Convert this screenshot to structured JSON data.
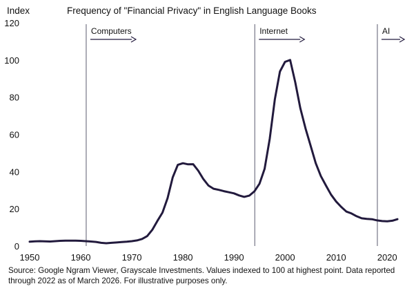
{
  "chart_data": {
    "type": "line",
    "title": "Frequency of \"Financial Privacy\" in English Language Books",
    "ylabel": "Index",
    "xlabel": "",
    "xlim": [
      1950,
      2022
    ],
    "ylim": [
      0,
      120
    ],
    "x_ticks": [
      1950,
      1960,
      1970,
      1980,
      1990,
      2000,
      2010,
      2020
    ],
    "y_ticks": [
      0,
      20,
      40,
      60,
      80,
      100,
      120
    ],
    "grid": false,
    "legend": "none",
    "series": [
      {
        "color": "#221a3d",
        "x": [
          1950,
          1951,
          1952,
          1953,
          1954,
          1955,
          1956,
          1957,
          1958,
          1959,
          1960,
          1961,
          1962,
          1963,
          1964,
          1965,
          1966,
          1967,
          1968,
          1969,
          1970,
          1971,
          1972,
          1973,
          1974,
          1975,
          1976,
          1977,
          1978,
          1979,
          1980,
          1981,
          1982,
          1983,
          1984,
          1985,
          1986,
          1987,
          1988,
          1989,
          1990,
          1991,
          1992,
          1993,
          1994,
          1995,
          1996,
          1997,
          1998,
          1999,
          2000,
          2001,
          2002,
          2003,
          2004,
          2005,
          2006,
          2007,
          2008,
          2009,
          2010,
          2011,
          2012,
          2013,
          2014,
          2015,
          2016,
          2017,
          2018,
          2019,
          2020,
          2021,
          2022
        ],
        "values": [
          2.3,
          2.5,
          2.6,
          2.5,
          2.4,
          2.6,
          2.8,
          2.9,
          2.9,
          2.9,
          2.8,
          2.6,
          2.4,
          2.2,
          1.7,
          1.5,
          1.7,
          1.9,
          2.1,
          2.3,
          2.6,
          3.0,
          3.8,
          5.3,
          8.7,
          13.5,
          18.0,
          25.8,
          36.9,
          43.6,
          44.5,
          43.9,
          44.0,
          40.5,
          36.0,
          32.5,
          30.8,
          30.2,
          29.5,
          28.9,
          28.3,
          27.2,
          26.4,
          27.1,
          29.4,
          33.5,
          41.5,
          57.6,
          78.8,
          93.8,
          99.0,
          100.0,
          88.0,
          74.0,
          63.2,
          53.9,
          44.5,
          37.6,
          32.5,
          27.6,
          23.9,
          21.0,
          18.5,
          17.5,
          16.0,
          14.9,
          14.6,
          14.4,
          13.8,
          13.4,
          13.3,
          13.6,
          14.4
        ]
      }
    ],
    "annotations": [
      {
        "label": "Computers",
        "x": 1961
      },
      {
        "label": "Internet",
        "x": 1994
      },
      {
        "label": "AI",
        "x": 2018
      }
    ],
    "footnote": "Source: Google Ngram Viewer, Grayscale Investments. Values indexed to 100 at highest point. Data reported through 2022 as of March 2026. For illustrative purposes only."
  }
}
